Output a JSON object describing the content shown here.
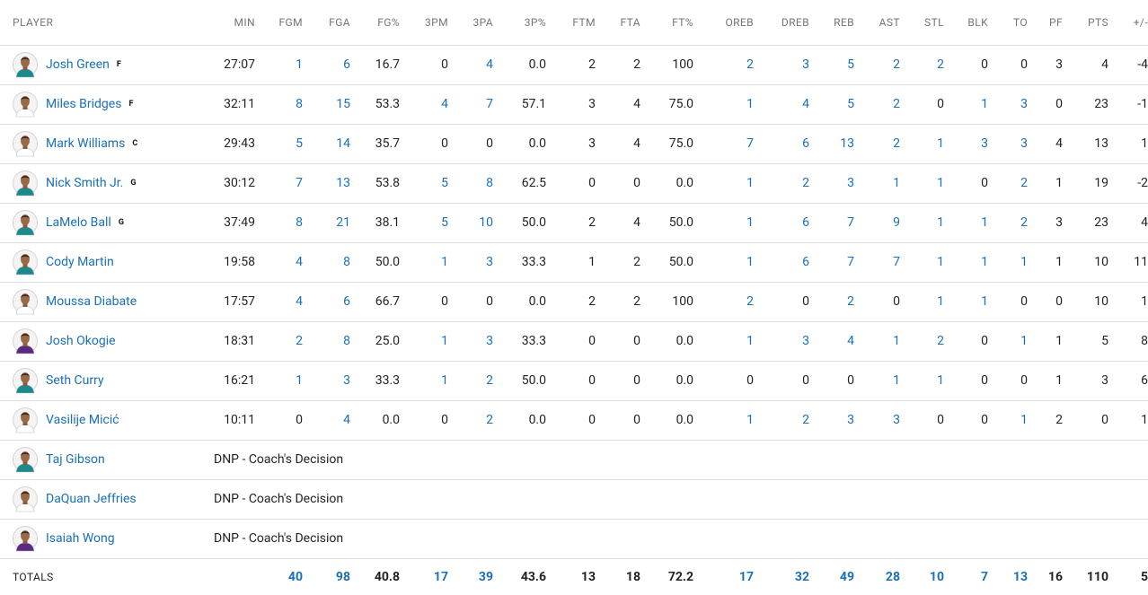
{
  "columns": [
    "PLAYER",
    "MIN",
    "FGM",
    "FGA",
    "FG%",
    "3PM",
    "3PA",
    "3P%",
    "FTM",
    "FTA",
    "FT%",
    "OREB",
    "DREB",
    "REB",
    "AST",
    "STL",
    "BLK",
    "TO",
    "PF",
    "PTS",
    "+/-"
  ],
  "colors": {
    "link": "#1a6fb5",
    "text": "#222222",
    "header_text": "#757575",
    "border": "#e2e2e2"
  },
  "players": [
    {
      "name": "Josh Green",
      "pos": "F",
      "jersey": "#1a8a8f",
      "stats": [
        "27:07",
        "1",
        "6",
        "16.7",
        "0",
        "4",
        "0.0",
        "2",
        "2",
        "100",
        "2",
        "3",
        "5",
        "2",
        "2",
        "0",
        "0",
        "3",
        "4",
        "-4"
      ]
    },
    {
      "name": "Miles Bridges",
      "pos": "F",
      "jersey": "#ffffff",
      "stats": [
        "32:11",
        "8",
        "15",
        "53.3",
        "4",
        "7",
        "57.1",
        "3",
        "4",
        "75.0",
        "1",
        "4",
        "5",
        "2",
        "0",
        "1",
        "3",
        "0",
        "23",
        "-1"
      ]
    },
    {
      "name": "Mark Williams",
      "pos": "C",
      "jersey": "#ffffff",
      "stats": [
        "29:43",
        "5",
        "14",
        "35.7",
        "0",
        "0",
        "0.0",
        "3",
        "4",
        "75.0",
        "7",
        "6",
        "13",
        "2",
        "1",
        "3",
        "3",
        "4",
        "13",
        "1"
      ]
    },
    {
      "name": "Nick Smith Jr.",
      "pos": "G",
      "jersey": "#1a8a8f",
      "stats": [
        "30:12",
        "7",
        "13",
        "53.8",
        "5",
        "8",
        "62.5",
        "0",
        "0",
        "0.0",
        "1",
        "2",
        "3",
        "1",
        "1",
        "0",
        "2",
        "1",
        "19",
        "-2"
      ]
    },
    {
      "name": "LaMelo Ball",
      "pos": "G",
      "jersey": "#1a8a8f",
      "stats": [
        "37:49",
        "8",
        "21",
        "38.1",
        "5",
        "10",
        "50.0",
        "2",
        "4",
        "50.0",
        "1",
        "6",
        "7",
        "9",
        "1",
        "1",
        "2",
        "3",
        "23",
        "4"
      ]
    },
    {
      "name": "Cody Martin",
      "pos": "",
      "jersey": "#1a8a8f",
      "stats": [
        "19:58",
        "4",
        "8",
        "50.0",
        "1",
        "3",
        "33.3",
        "1",
        "2",
        "50.0",
        "1",
        "6",
        "7",
        "7",
        "1",
        "1",
        "1",
        "1",
        "10",
        "11"
      ]
    },
    {
      "name": "Moussa Diabate",
      "pos": "",
      "jersey": "#ffffff",
      "stats": [
        "17:57",
        "4",
        "6",
        "66.7",
        "0",
        "0",
        "0.0",
        "2",
        "2",
        "100",
        "2",
        "0",
        "2",
        "0",
        "1",
        "1",
        "0",
        "0",
        "10",
        "1"
      ]
    },
    {
      "name": "Josh Okogie",
      "pos": "",
      "jersey": "#5a2a82",
      "stats": [
        "18:31",
        "2",
        "8",
        "25.0",
        "1",
        "3",
        "33.3",
        "0",
        "0",
        "0.0",
        "1",
        "3",
        "4",
        "1",
        "2",
        "0",
        "1",
        "1",
        "5",
        "8"
      ]
    },
    {
      "name": "Seth Curry",
      "pos": "",
      "jersey": "#1a8a8f",
      "stats": [
        "16:21",
        "1",
        "3",
        "33.3",
        "1",
        "2",
        "50.0",
        "0",
        "0",
        "0.0",
        "0",
        "0",
        "0",
        "1",
        "1",
        "0",
        "0",
        "1",
        "3",
        "6"
      ]
    },
    {
      "name": "Vasilije Micić",
      "pos": "",
      "jersey": "#ffffff",
      "stats": [
        "10:11",
        "0",
        "4",
        "0.0",
        "0",
        "2",
        "0.0",
        "0",
        "0",
        "0.0",
        "1",
        "2",
        "3",
        "3",
        "0",
        "0",
        "1",
        "2",
        "0",
        "1"
      ]
    }
  ],
  "dnp": [
    {
      "name": "Taj Gibson",
      "jersey": "#1a8a8f",
      "note": "DNP - Coach's Decision"
    },
    {
      "name": "DaQuan Jeffries",
      "jersey": "#ffffff",
      "note": "DNP - Coach's Decision"
    },
    {
      "name": "Isaiah Wong",
      "jersey": "#5a2a82",
      "note": "DNP - Coach's Decision"
    }
  ],
  "totals": {
    "label": "TOTALS",
    "stats": [
      "",
      "40",
      "98",
      "40.8",
      "17",
      "39",
      "43.6",
      "13",
      "18",
      "72.2",
      "17",
      "32",
      "49",
      "28",
      "10",
      "7",
      "13",
      "16",
      "110",
      "5"
    ]
  }
}
